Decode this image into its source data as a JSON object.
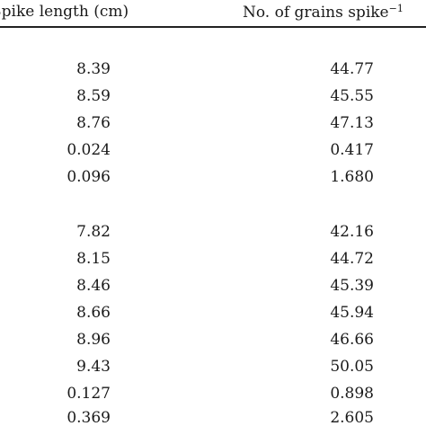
{
  "table": {
    "headers": {
      "col1": "Spike length (cm)",
      "col2": "No. of grains spike",
      "col2_superscript": "−1"
    },
    "group1": [
      {
        "spike_length": "8.39",
        "grains": "44.77"
      },
      {
        "spike_length": "8.59",
        "grains": "45.55"
      },
      {
        "spike_length": "8.76",
        "grains": "47.13"
      },
      {
        "spike_length": "0.024",
        "grains": "0.417"
      },
      {
        "spike_length": "0.096",
        "grains": "1.680"
      }
    ],
    "group2": [
      {
        "spike_length": "7.82",
        "grains": "42.16"
      },
      {
        "spike_length": "8.15",
        "grains": "44.72"
      },
      {
        "spike_length": "8.46",
        "grains": "45.39"
      },
      {
        "spike_length": "8.66",
        "grains": "45.94"
      },
      {
        "spike_length": "8.96",
        "grains": "46.66"
      },
      {
        "spike_length": "9.43",
        "grains": "50.05"
      },
      {
        "spike_length": "0.127",
        "grains": "0.898"
      },
      {
        "spike_length": "0.369",
        "grains": "2.605"
      }
    ]
  }
}
